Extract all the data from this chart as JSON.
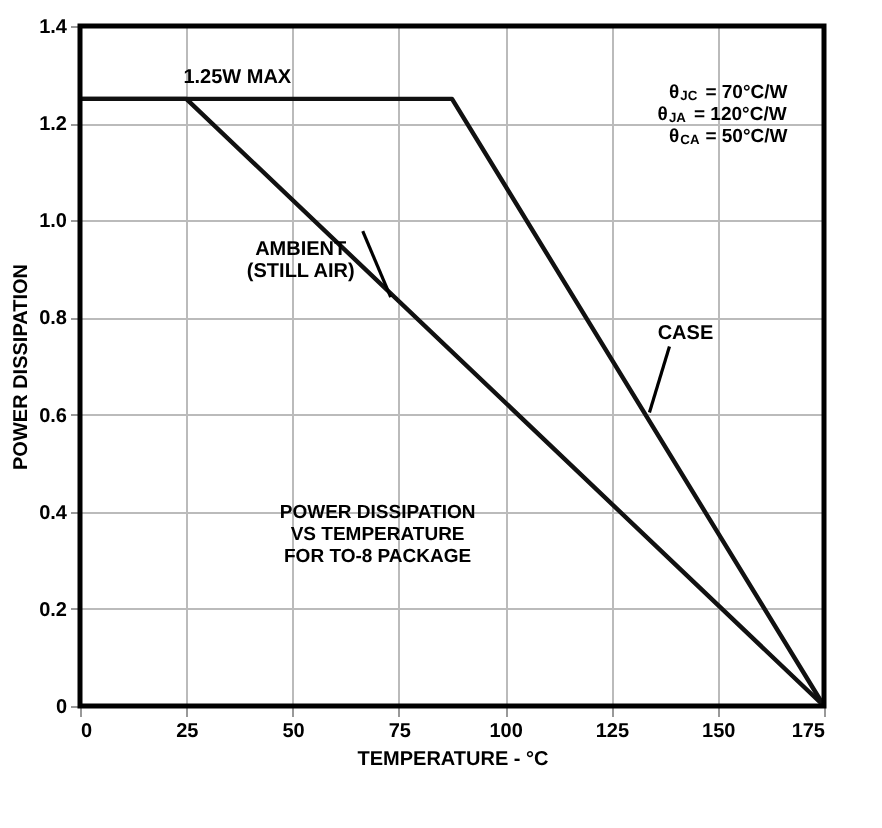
{
  "chart_data": {
    "type": "line",
    "xlabel": "TEMPERATURE - °C",
    "ylabel": "POWER DISSIPATION",
    "series": [
      {
        "name": "AMBIENT\n(STILL AIR)",
        "color": "#111111",
        "x": [
          0,
          25,
          175
        ],
        "values": [
          1.25,
          1.25,
          0
        ]
      },
      {
        "name": "CASE",
        "color": "#111111",
        "x": [
          0,
          87.5,
          175
        ],
        "values": [
          1.25,
          1.25,
          0
        ]
      }
    ],
    "xlim": [
      0,
      175
    ],
    "xticks": [
      0,
      25,
      50,
      75,
      100,
      125,
      150,
      175
    ],
    "ylim": [
      0,
      1.4
    ],
    "yticks": [
      {
        "value": 0,
        "label": "0"
      },
      0.2,
      0.4,
      0.6,
      0.8,
      {
        "value": 1,
        "label": "1.0"
      },
      1.2,
      1.4
    ],
    "grid": true,
    "marker": "none",
    "line_style": "solid",
    "annotations": [
      {
        "text": "1.25W MAX",
        "x": 37,
        "y": 1.25
      },
      "θ$_{JC}$ = 70°C/W\nθ$_{JA}$ = 120°C/W\nθ$_{CA}$ = 50°C/W",
      "POWER DISSIPATION\nVS TEMPERATURE\nFOR TO-8 PACKAGE"
    ]
  }
}
